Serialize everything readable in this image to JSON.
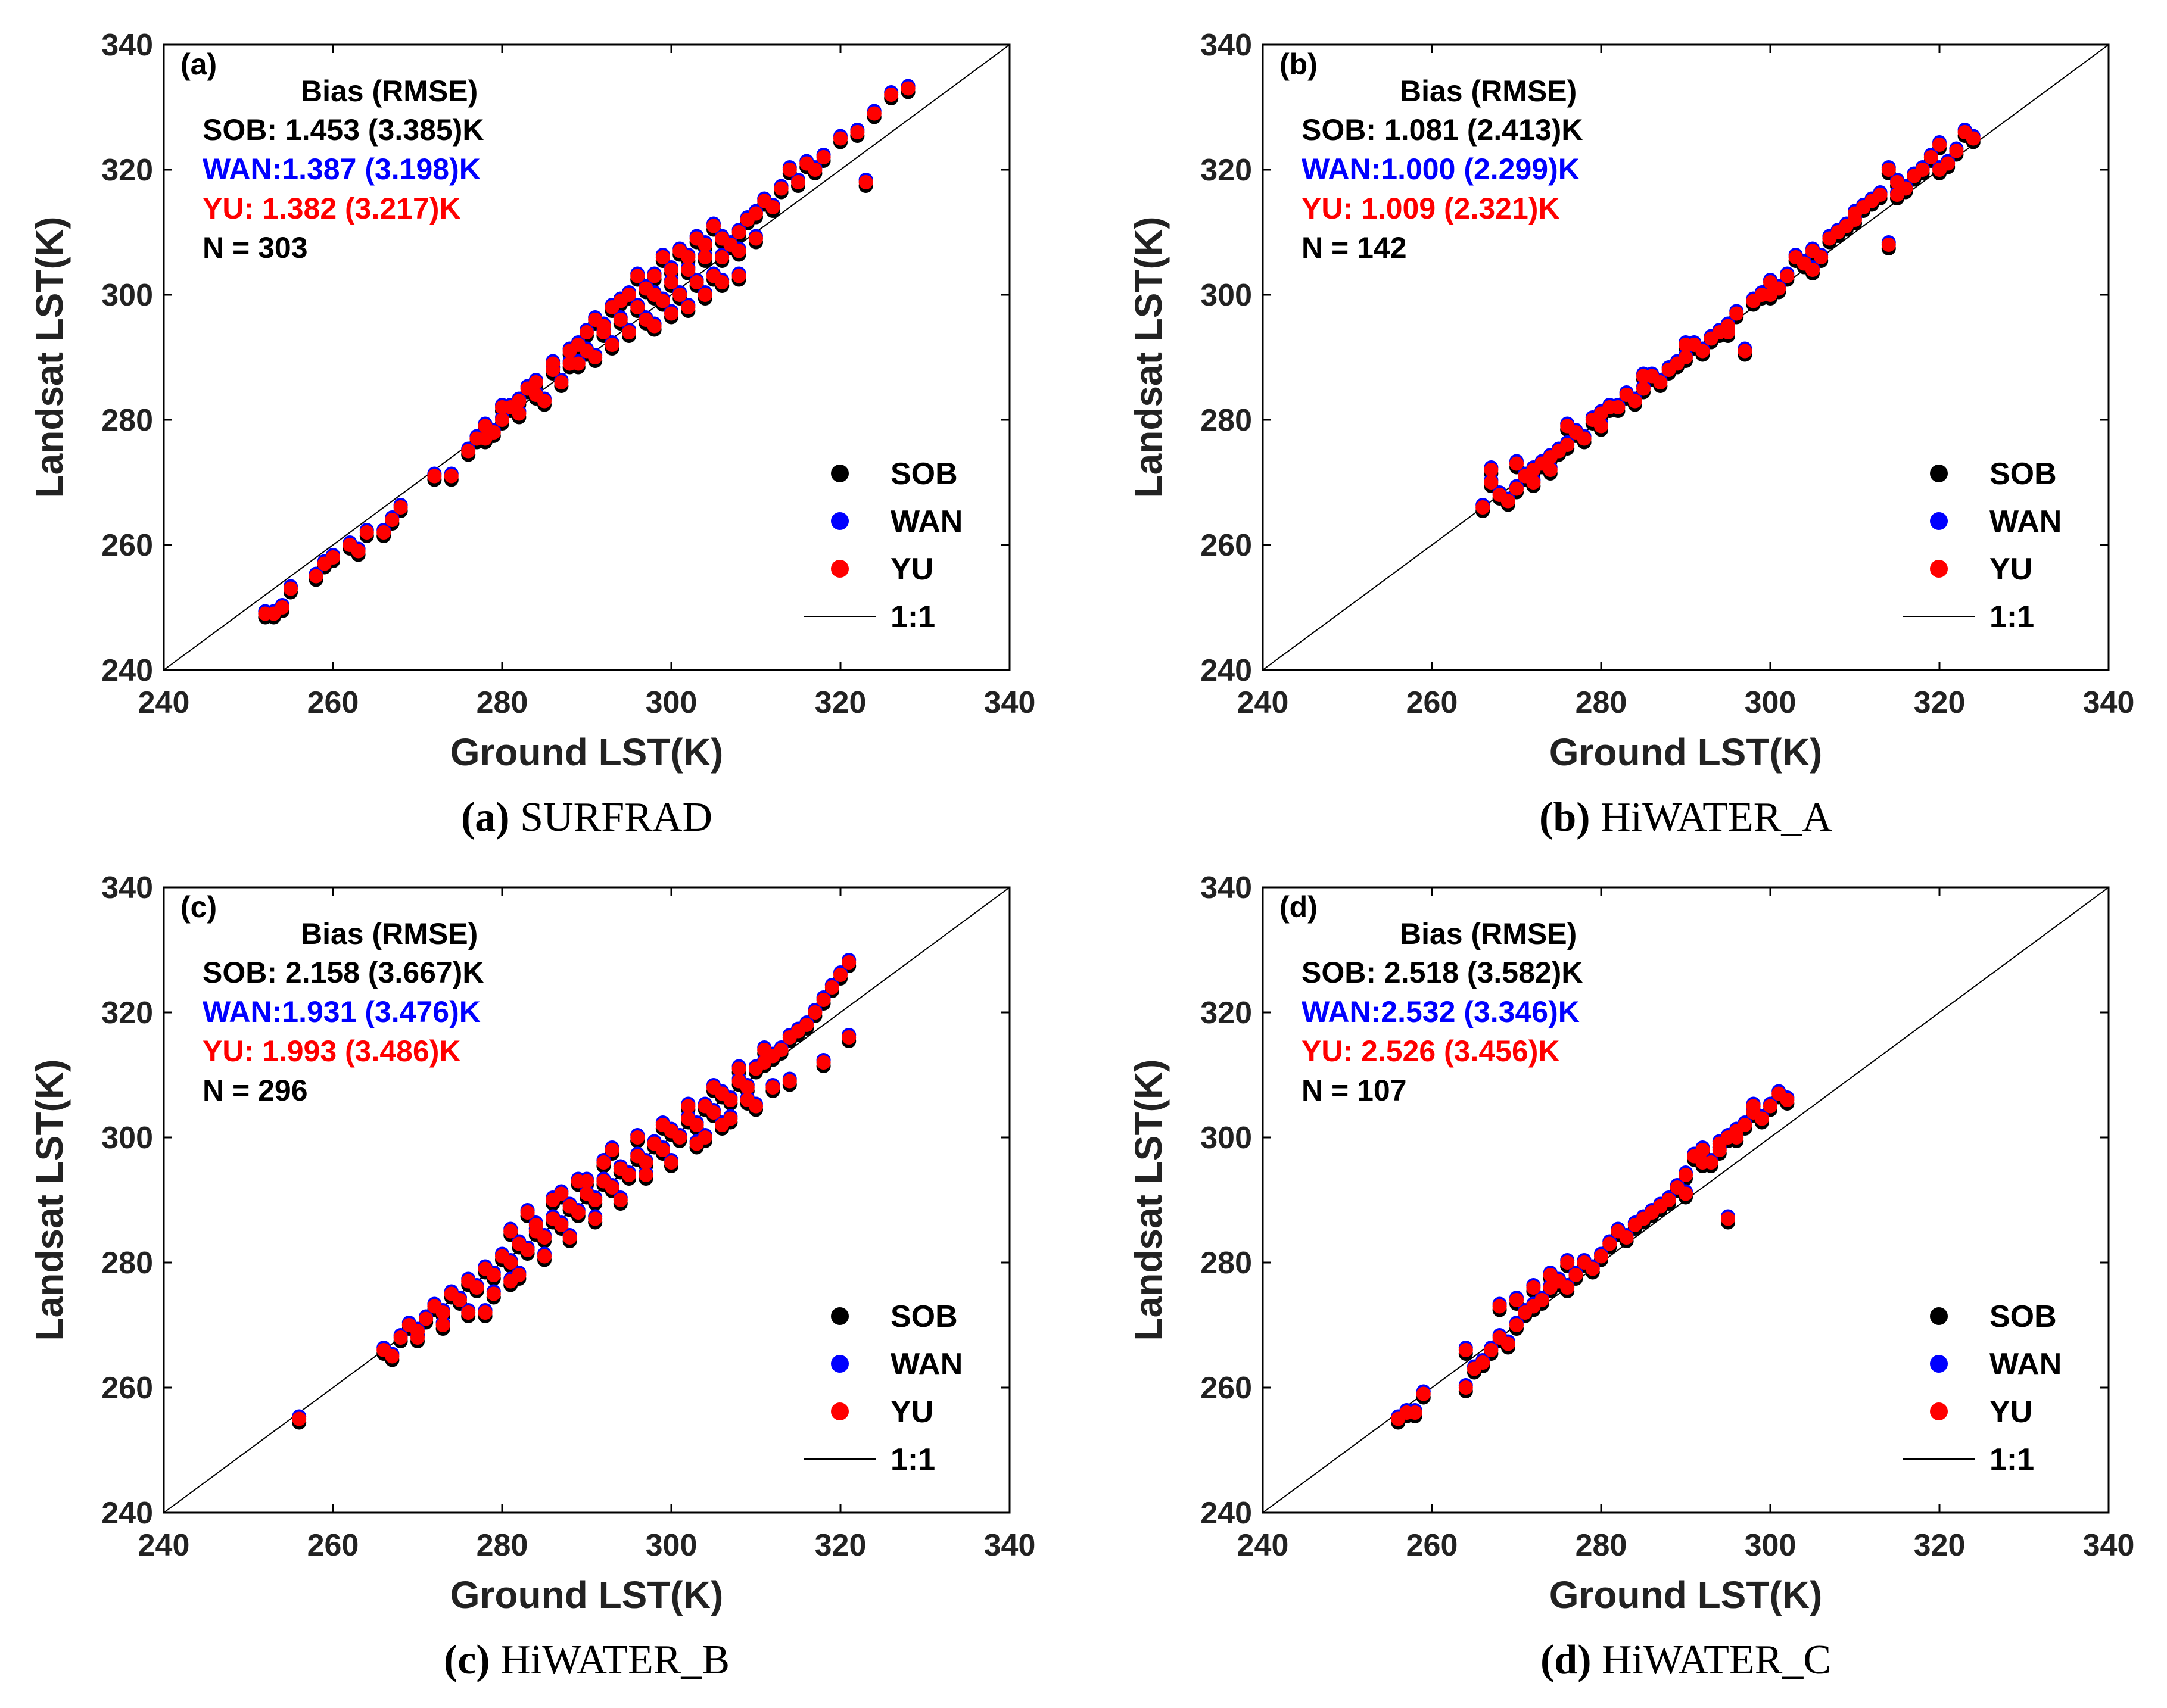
{
  "colors": {
    "SOB": "#000000",
    "WAN": "#0000ff",
    "YU": "#ff0000",
    "one_to_one": "#000000"
  },
  "chart_data": [
    {
      "type": "scatter",
      "panel": "(a)",
      "caption_letter": "(a)",
      "caption_name": "SURFRAD",
      "xlabel": "Ground LST(K)",
      "ylabel": "Landsat LST(K)",
      "xlim": [
        240,
        340
      ],
      "ylim": [
        240,
        340
      ],
      "ticks": [
        "240",
        "260",
        "280",
        "300",
        "320",
        "340"
      ],
      "stats_header": "Bias  (RMSE)",
      "stats": [
        {
          "series": "SOB",
          "text": "SOB: 1.453 (3.385)K"
        },
        {
          "series": "WAN",
          "text": "WAN:1.387 (3.198)K"
        },
        {
          "series": "YU",
          "text": "YU:    1.382 (3.217)K"
        }
      ],
      "n_text": "N = 303",
      "legend": [
        "SOB",
        "WAN",
        "YU",
        "1:1"
      ],
      "points": [
        [
          252,
          249
        ],
        [
          253,
          249
        ],
        [
          254,
          250
        ],
        [
          255,
          253
        ],
        [
          258,
          255
        ],
        [
          259,
          257
        ],
        [
          260,
          258
        ],
        [
          262,
          260
        ],
        [
          263,
          259
        ],
        [
          264,
          262
        ],
        [
          266,
          262
        ],
        [
          267,
          264
        ],
        [
          268,
          266
        ],
        [
          272,
          271
        ],
        [
          274,
          271
        ],
        [
          276,
          275
        ],
        [
          278,
          277
        ],
        [
          280,
          280
        ],
        [
          281,
          282
        ],
        [
          282,
          281
        ],
        [
          283,
          285
        ],
        [
          284,
          284
        ],
        [
          285,
          283
        ],
        [
          286,
          288
        ],
        [
          287,
          286
        ],
        [
          288,
          289
        ],
        [
          289,
          289
        ],
        [
          290,
          291
        ],
        [
          291,
          290
        ],
        [
          292,
          294
        ],
        [
          293,
          292
        ],
        [
          294,
          296
        ],
        [
          295,
          294
        ],
        [
          296,
          298
        ],
        [
          297,
          296
        ],
        [
          298,
          300
        ],
        [
          299,
          299
        ],
        [
          300,
          302
        ],
        [
          301,
          300
        ],
        [
          302,
          304
        ],
        [
          303,
          302
        ],
        [
          304,
          306
        ],
        [
          305,
          303
        ],
        [
          306,
          309
        ],
        [
          307,
          308
        ],
        [
          308,
          310
        ],
        [
          309,
          312
        ],
        [
          310,
          313
        ],
        [
          311,
          315
        ],
        [
          312,
          314
        ],
        [
          313,
          317
        ],
        [
          314,
          320
        ],
        [
          315,
          318
        ],
        [
          316,
          321
        ],
        [
          317,
          320
        ],
        [
          318,
          322
        ],
        [
          320,
          325
        ],
        [
          322,
          326
        ],
        [
          323,
          318
        ],
        [
          324,
          329
        ],
        [
          326,
          332
        ],
        [
          328,
          333
        ],
        [
          298,
          295
        ],
        [
          300,
          297
        ],
        [
          302,
          298
        ],
        [
          304,
          300
        ],
        [
          306,
          302
        ],
        [
          308,
          303
        ],
        [
          296,
          303
        ],
        [
          299,
          306
        ],
        [
          301,
          307
        ],
        [
          303,
          309
        ],
        [
          305,
          311
        ],
        [
          293,
          298
        ],
        [
          291,
          296
        ],
        [
          289,
          292
        ],
        [
          295,
          300
        ],
        [
          297,
          301
        ],
        [
          300,
          304
        ],
        [
          302,
          306
        ],
        [
          304,
          308
        ],
        [
          306,
          306
        ],
        [
          308,
          307
        ],
        [
          310,
          309
        ],
        [
          298,
          303
        ],
        [
          294,
          299
        ],
        [
          292,
          295
        ],
        [
          290,
          294
        ],
        [
          288,
          291
        ],
        [
          286,
          289
        ],
        [
          284,
          286
        ],
        [
          282,
          283
        ],
        [
          280,
          282
        ],
        [
          278,
          279
        ],
        [
          277,
          277
        ],
        [
          279,
          278
        ]
      ]
    },
    {
      "type": "scatter",
      "panel": "(b)",
      "caption_letter": "(b)",
      "caption_name": "HiWATER_A",
      "xlabel": "Ground LST(K)",
      "ylabel": "Landsat LST(K)",
      "xlim": [
        240,
        340
      ],
      "ylim": [
        240,
        340
      ],
      "ticks": [
        "240",
        "260",
        "280",
        "300",
        "320",
        "340"
      ],
      "stats_header": "Bias  (RMSE)",
      "stats": [
        {
          "series": "SOB",
          "text": "SOB: 1.081 (2.413)K"
        },
        {
          "series": "WAN",
          "text": "WAN:1.000 (2.299)K"
        },
        {
          "series": "YU",
          "text": "YU:    1.009 (2.321)K"
        }
      ],
      "n_text": "N = 142",
      "legend": [
        "SOB",
        "WAN",
        "YU",
        "1:1"
      ],
      "points": [
        [
          266,
          266
        ],
        [
          267,
          270
        ],
        [
          268,
          268
        ],
        [
          269,
          267
        ],
        [
          270,
          269
        ],
        [
          271,
          271
        ],
        [
          272,
          272
        ],
        [
          273,
          273
        ],
        [
          274,
          272
        ],
        [
          275,
          275
        ],
        [
          276,
          276
        ],
        [
          277,
          278
        ],
        [
          278,
          277
        ],
        [
          279,
          280
        ],
        [
          280,
          279
        ],
        [
          281,
          282
        ],
        [
          282,
          282
        ],
        [
          283,
          284
        ],
        [
          284,
          283
        ],
        [
          285,
          285
        ],
        [
          286,
          287
        ],
        [
          287,
          286
        ],
        [
          288,
          288
        ],
        [
          289,
          289
        ],
        [
          290,
          290
        ],
        [
          291,
          292
        ],
        [
          292,
          291
        ],
        [
          293,
          293
        ],
        [
          294,
          294
        ],
        [
          295,
          295
        ],
        [
          296,
          297
        ],
        [
          297,
          291
        ],
        [
          298,
          299
        ],
        [
          299,
          300
        ],
        [
          300,
          302
        ],
        [
          301,
          301
        ],
        [
          302,
          303
        ],
        [
          303,
          306
        ],
        [
          304,
          305
        ],
        [
          305,
          307
        ],
        [
          306,
          306
        ],
        [
          307,
          309
        ],
        [
          308,
          310
        ],
        [
          309,
          311
        ],
        [
          310,
          313
        ],
        [
          311,
          314
        ],
        [
          312,
          315
        ],
        [
          313,
          316
        ],
        [
          314,
          308
        ],
        [
          314,
          320
        ],
        [
          315,
          318
        ],
        [
          316,
          317
        ],
        [
          317,
          319
        ],
        [
          318,
          320
        ],
        [
          319,
          322
        ],
        [
          320,
          324
        ],
        [
          321,
          321
        ],
        [
          322,
          323
        ],
        [
          323,
          326
        ],
        [
          324,
          325
        ],
        [
          267,
          272
        ],
        [
          270,
          273
        ],
        [
          272,
          270
        ],
        [
          274,
          274
        ],
        [
          276,
          279
        ],
        [
          280,
          281
        ],
        [
          285,
          287
        ],
        [
          290,
          292
        ],
        [
          295,
          294
        ],
        [
          300,
          300
        ],
        [
          305,
          304
        ],
        [
          310,
          312
        ],
        [
          315,
          316
        ],
        [
          320,
          320
        ]
      ]
    },
    {
      "type": "scatter",
      "panel": "(c)",
      "caption_letter": "(c)",
      "caption_name": "HiWATER_B",
      "xlabel": "Ground LST(K)",
      "ylabel": "Landsat LST(K)",
      "xlim": [
        240,
        340
      ],
      "ylim": [
        240,
        340
      ],
      "ticks": [
        "240",
        "260",
        "280",
        "300",
        "320",
        "340"
      ],
      "stats_header": "Bias  (RMSE)",
      "stats": [
        {
          "series": "SOB",
          "text": "SOB: 2.158 (3.667)K"
        },
        {
          "series": "WAN",
          "text": "WAN:1.931 (3.476)K"
        },
        {
          "series": "YU",
          "text": "YU:    1.993 (3.486)K"
        }
      ],
      "n_text": "N = 296",
      "legend": [
        "SOB",
        "WAN",
        "YU",
        "1:1"
      ],
      "points": [
        [
          256,
          255
        ],
        [
          266,
          266
        ],
        [
          267,
          265
        ],
        [
          268,
          268
        ],
        [
          269,
          270
        ],
        [
          270,
          269
        ],
        [
          271,
          271
        ],
        [
          272,
          273
        ],
        [
          273,
          272
        ],
        [
          274,
          275
        ],
        [
          275,
          274
        ],
        [
          276,
          277
        ],
        [
          277,
          276
        ],
        [
          278,
          279
        ],
        [
          279,
          278
        ],
        [
          280,
          281
        ],
        [
          281,
          280
        ],
        [
          282,
          283
        ],
        [
          283,
          282
        ],
        [
          284,
          285
        ],
        [
          285,
          284
        ],
        [
          286,
          287
        ],
        [
          287,
          286
        ],
        [
          288,
          289
        ],
        [
          289,
          288
        ],
        [
          290,
          291
        ],
        [
          291,
          290
        ],
        [
          292,
          293
        ],
        [
          293,
          292
        ],
        [
          294,
          295
        ],
        [
          295,
          294
        ],
        [
          296,
          297
        ],
        [
          297,
          296
        ],
        [
          298,
          299
        ],
        [
          299,
          298
        ],
        [
          300,
          301
        ],
        [
          301,
          300
        ],
        [
          302,
          303
        ],
        [
          303,
          302
        ],
        [
          304,
          305
        ],
        [
          305,
          304
        ],
        [
          306,
          307
        ],
        [
          307,
          306
        ],
        [
          308,
          309
        ],
        [
          309,
          308
        ],
        [
          310,
          311
        ],
        [
          311,
          312
        ],
        [
          312,
          313
        ],
        [
          313,
          314
        ],
        [
          314,
          316
        ],
        [
          315,
          317
        ],
        [
          316,
          318
        ],
        [
          317,
          320
        ],
        [
          318,
          322
        ],
        [
          319,
          324
        ],
        [
          320,
          326
        ],
        [
          321,
          328
        ],
        [
          321,
          316
        ],
        [
          318,
          312
        ],
        [
          310,
          305
        ],
        [
          307,
          303
        ],
        [
          304,
          300
        ],
        [
          300,
          296
        ],
        [
          297,
          294
        ],
        [
          294,
          290
        ],
        [
          291,
          287
        ],
        [
          288,
          284
        ],
        [
          285,
          281
        ],
        [
          282,
          278
        ],
        [
          279,
          275
        ],
        [
          276,
          272
        ],
        [
          273,
          270
        ],
        [
          270,
          268
        ],
        [
          278,
          272
        ],
        [
          281,
          277
        ],
        [
          284,
          286
        ],
        [
          287,
          291
        ],
        [
          290,
          293
        ],
        [
          293,
          298
        ],
        [
          296,
          300
        ],
        [
          299,
          302
        ],
        [
          302,
          305
        ],
        [
          305,
          308
        ],
        [
          308,
          311
        ],
        [
          311,
          314
        ],
        [
          314,
          309
        ],
        [
          312,
          308
        ],
        [
          309,
          306
        ],
        [
          306,
          302
        ],
        [
          303,
          299
        ],
        [
          281,
          285
        ],
        [
          283,
          288
        ],
        [
          286,
          290
        ],
        [
          289,
          293
        ],
        [
          292,
          296
        ]
      ]
    },
    {
      "type": "scatter",
      "panel": "(d)",
      "caption_letter": "(d)",
      "caption_name": "HiWATER_C",
      "xlabel": "Ground LST(K)",
      "ylabel": "Landsat LST(K)",
      "xlim": [
        240,
        340
      ],
      "ylim": [
        240,
        340
      ],
      "ticks": [
        "240",
        "260",
        "280",
        "300",
        "320",
        "340"
      ],
      "stats_header": "Bias  (RMSE)",
      "stats": [
        {
          "series": "SOB",
          "text": "SOB: 2.518 (3.582)K"
        },
        {
          "series": "WAN",
          "text": "WAN:2.532 (3.346)K"
        },
        {
          "series": "YU",
          "text": "YU:    2.526 (3.456)K"
        }
      ],
      "n_text": "N = 107",
      "legend": [
        "SOB",
        "WAN",
        "YU",
        "1:1"
      ],
      "points": [
        [
          256,
          255
        ],
        [
          257,
          256
        ],
        [
          258,
          256
        ],
        [
          259,
          259
        ],
        [
          264,
          260
        ],
        [
          264,
          266
        ],
        [
          265,
          263
        ],
        [
          266,
          264
        ],
        [
          267,
          266
        ],
        [
          268,
          268
        ],
        [
          269,
          267
        ],
        [
          270,
          270
        ],
        [
          271,
          272
        ],
        [
          272,
          273
        ],
        [
          273,
          274
        ],
        [
          274,
          276
        ],
        [
          275,
          277
        ],
        [
          276,
          276
        ],
        [
          277,
          278
        ],
        [
          278,
          280
        ],
        [
          279,
          279
        ],
        [
          280,
          281
        ],
        [
          281,
          283
        ],
        [
          282,
          285
        ],
        [
          283,
          284
        ],
        [
          284,
          286
        ],
        [
          285,
          287
        ],
        [
          286,
          288
        ],
        [
          287,
          289
        ],
        [
          288,
          290
        ],
        [
          289,
          292
        ],
        [
          290,
          294
        ],
        [
          291,
          297
        ],
        [
          292,
          298
        ],
        [
          293,
          296
        ],
        [
          294,
          299
        ],
        [
          295,
          300
        ],
        [
          295,
          287
        ],
        [
          296,
          301
        ],
        [
          297,
          302
        ],
        [
          298,
          304
        ],
        [
          299,
          303
        ],
        [
          300,
          305
        ],
        [
          301,
          307
        ],
        [
          302,
          306
        ],
        [
          268,
          273
        ],
        [
          270,
          274
        ],
        [
          272,
          276
        ],
        [
          274,
          278
        ],
        [
          276,
          280
        ],
        [
          290,
          291
        ],
        [
          292,
          296
        ],
        [
          294,
          298
        ],
        [
          296,
          300
        ],
        [
          298,
          305
        ]
      ]
    }
  ]
}
